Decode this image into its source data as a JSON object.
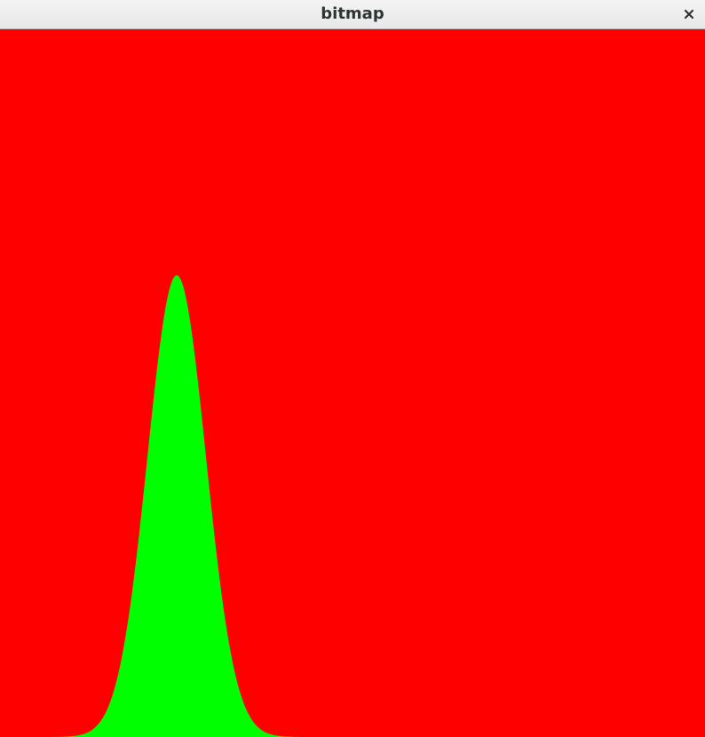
{
  "window": {
    "title": "bitmap",
    "close_icon": "close-icon"
  },
  "bitmap": {
    "background_color": "#ff0000",
    "curve_color": "#00ff00",
    "curve_type": "gaussian bell"
  }
}
